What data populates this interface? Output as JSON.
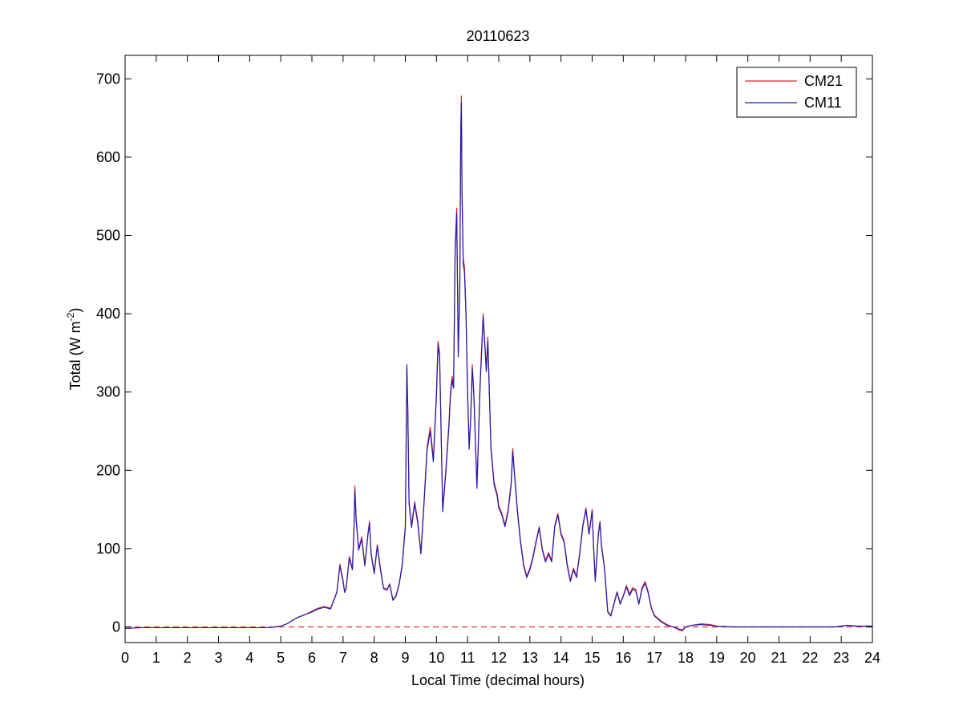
{
  "chart_data": {
    "type": "line",
    "title": "20110623",
    "xlabel": "Local Time (decimal hours)",
    "ylabel_main": "Total (W m",
    "ylabel_sup": "-2",
    "ylabel_end": ")",
    "xlim": [
      0,
      24
    ],
    "ylim": [
      -20,
      730
    ],
    "xticks": [
      0,
      1,
      2,
      3,
      4,
      5,
      6,
      7,
      8,
      9,
      10,
      11,
      12,
      13,
      14,
      15,
      16,
      17,
      18,
      19,
      20,
      21,
      22,
      23,
      24
    ],
    "yticks": [
      0,
      100,
      200,
      300,
      400,
      500,
      600,
      700
    ],
    "grid": false,
    "legend_position": "top-right",
    "zero_line": {
      "y": 0,
      "style": "dashed",
      "color": "#e0303a"
    },
    "series": [
      {
        "name": "CM21",
        "color": "#e8202a",
        "points": [
          [
            0,
            -2
          ],
          [
            0.5,
            -1
          ],
          [
            1,
            -1
          ],
          [
            2,
            -1
          ],
          [
            3,
            -1
          ],
          [
            4,
            -1
          ],
          [
            4.6,
            -1
          ],
          [
            4.8,
            0
          ],
          [
            5,
            1
          ],
          [
            5.2,
            4
          ],
          [
            5.4,
            9
          ],
          [
            5.6,
            13
          ],
          [
            5.8,
            16
          ],
          [
            6,
            20
          ],
          [
            6.2,
            24
          ],
          [
            6.4,
            26
          ],
          [
            6.6,
            24
          ],
          [
            6.8,
            45
          ],
          [
            6.9,
            80
          ],
          [
            7,
            60
          ],
          [
            7.05,
            45
          ],
          [
            7.1,
            50
          ],
          [
            7.2,
            90
          ],
          [
            7.3,
            75
          ],
          [
            7.35,
            125
          ],
          [
            7.38,
            180
          ],
          [
            7.42,
            140
          ],
          [
            7.5,
            100
          ],
          [
            7.6,
            115
          ],
          [
            7.7,
            80
          ],
          [
            7.8,
            120
          ],
          [
            7.85,
            135
          ],
          [
            7.9,
            95
          ],
          [
            8,
            70
          ],
          [
            8.1,
            105
          ],
          [
            8.2,
            75
          ],
          [
            8.3,
            50
          ],
          [
            8.4,
            48
          ],
          [
            8.5,
            55
          ],
          [
            8.6,
            35
          ],
          [
            8.7,
            40
          ],
          [
            8.8,
            55
          ],
          [
            8.9,
            80
          ],
          [
            9,
            130
          ],
          [
            9.05,
            330
          ],
          [
            9.08,
            280
          ],
          [
            9.12,
            160
          ],
          [
            9.2,
            130
          ],
          [
            9.3,
            160
          ],
          [
            9.4,
            135
          ],
          [
            9.5,
            95
          ],
          [
            9.6,
            160
          ],
          [
            9.7,
            230
          ],
          [
            9.8,
            255
          ],
          [
            9.9,
            215
          ],
          [
            10,
            300
          ],
          [
            10.05,
            365
          ],
          [
            10.1,
            350
          ],
          [
            10.2,
            150
          ],
          [
            10.3,
            200
          ],
          [
            10.4,
            260
          ],
          [
            10.45,
            300
          ],
          [
            10.5,
            320
          ],
          [
            10.55,
            310
          ],
          [
            10.6,
            485
          ],
          [
            10.65,
            535
          ],
          [
            10.7,
            350
          ],
          [
            10.75,
            440
          ],
          [
            10.78,
            635
          ],
          [
            10.8,
            678
          ],
          [
            10.82,
            560
          ],
          [
            10.86,
            470
          ],
          [
            10.9,
            460
          ],
          [
            10.95,
            400
          ],
          [
            11,
            300
          ],
          [
            11.05,
            230
          ],
          [
            11.1,
            270
          ],
          [
            11.15,
            335
          ],
          [
            11.2,
            300
          ],
          [
            11.3,
            180
          ],
          [
            11.4,
            310
          ],
          [
            11.5,
            400
          ],
          [
            11.6,
            330
          ],
          [
            11.65,
            370
          ],
          [
            11.75,
            230
          ],
          [
            11.85,
            185
          ],
          [
            11.95,
            170
          ],
          [
            12,
            155
          ],
          [
            12.1,
            145
          ],
          [
            12.2,
            130
          ],
          [
            12.3,
            150
          ],
          [
            12.4,
            185
          ],
          [
            12.45,
            228
          ],
          [
            12.5,
            200
          ],
          [
            12.6,
            150
          ],
          [
            12.7,
            110
          ],
          [
            12.8,
            80
          ],
          [
            12.9,
            65
          ],
          [
            13,
            75
          ],
          [
            13.1,
            90
          ],
          [
            13.2,
            110
          ],
          [
            13.3,
            128
          ],
          [
            13.4,
            100
          ],
          [
            13.5,
            85
          ],
          [
            13.6,
            95
          ],
          [
            13.7,
            85
          ],
          [
            13.8,
            130
          ],
          [
            13.9,
            145
          ],
          [
            14,
            120
          ],
          [
            14.1,
            110
          ],
          [
            14.2,
            80
          ],
          [
            14.3,
            60
          ],
          [
            14.4,
            75
          ],
          [
            14.5,
            65
          ],
          [
            14.6,
            95
          ],
          [
            14.7,
            130
          ],
          [
            14.8,
            152
          ],
          [
            14.9,
            120
          ],
          [
            15,
            150
          ],
          [
            15.05,
            100
          ],
          [
            15.1,
            60
          ],
          [
            15.2,
            120
          ],
          [
            15.25,
            135
          ],
          [
            15.3,
            105
          ],
          [
            15.4,
            75
          ],
          [
            15.5,
            20
          ],
          [
            15.6,
            15
          ],
          [
            15.7,
            30
          ],
          [
            15.8,
            45
          ],
          [
            15.9,
            30
          ],
          [
            16,
            40
          ],
          [
            16.1,
            53
          ],
          [
            16.2,
            42
          ],
          [
            16.3,
            50
          ],
          [
            16.4,
            48
          ],
          [
            16.5,
            30
          ],
          [
            16.6,
            50
          ],
          [
            16.7,
            58
          ],
          [
            16.8,
            45
          ],
          [
            16.9,
            25
          ],
          [
            17,
            15
          ],
          [
            17.2,
            8
          ],
          [
            17.4,
            3
          ],
          [
            17.6,
            0
          ],
          [
            17.8,
            -4
          ],
          [
            17.9,
            -5
          ],
          [
            18,
            0
          ],
          [
            18.2,
            2
          ],
          [
            18.5,
            4
          ],
          [
            18.8,
            3
          ],
          [
            19,
            1
          ],
          [
            19.5,
            0
          ],
          [
            20,
            0
          ],
          [
            21,
            0
          ],
          [
            22,
            0
          ],
          [
            22.8,
            0
          ],
          [
            23.2,
            2
          ],
          [
            23.5,
            1
          ],
          [
            24,
            1
          ]
        ]
      },
      {
        "name": "CM11",
        "color": "#1d1db0",
        "points": [
          [
            0,
            -2
          ],
          [
            0.5,
            -1
          ],
          [
            1,
            -1
          ],
          [
            2,
            -1
          ],
          [
            3,
            -1
          ],
          [
            4,
            -1
          ],
          [
            4.6,
            -1
          ],
          [
            4.8,
            0
          ],
          [
            5,
            1
          ],
          [
            5.2,
            4
          ],
          [
            5.4,
            9
          ],
          [
            5.6,
            13
          ],
          [
            5.8,
            16
          ],
          [
            6,
            19
          ],
          [
            6.2,
            23
          ],
          [
            6.4,
            25
          ],
          [
            6.6,
            23
          ],
          [
            6.8,
            44
          ],
          [
            6.9,
            78
          ],
          [
            7,
            58
          ],
          [
            7.05,
            44
          ],
          [
            7.1,
            49
          ],
          [
            7.2,
            88
          ],
          [
            7.3,
            73
          ],
          [
            7.35,
            122
          ],
          [
            7.38,
            175
          ],
          [
            7.42,
            137
          ],
          [
            7.5,
            98
          ],
          [
            7.6,
            112
          ],
          [
            7.7,
            78
          ],
          [
            7.8,
            118
          ],
          [
            7.85,
            132
          ],
          [
            7.9,
            93
          ],
          [
            8,
            68
          ],
          [
            8.1,
            103
          ],
          [
            8.2,
            73
          ],
          [
            8.3,
            49
          ],
          [
            8.4,
            47
          ],
          [
            8.5,
            54
          ],
          [
            8.6,
            34
          ],
          [
            8.7,
            39
          ],
          [
            8.8,
            54
          ],
          [
            8.9,
            78
          ],
          [
            9,
            127
          ],
          [
            9.05,
            335
          ],
          [
            9.08,
            275
          ],
          [
            9.12,
            157
          ],
          [
            9.2,
            127
          ],
          [
            9.3,
            157
          ],
          [
            9.4,
            132
          ],
          [
            9.5,
            93
          ],
          [
            9.6,
            157
          ],
          [
            9.7,
            226
          ],
          [
            9.8,
            250
          ],
          [
            9.9,
            211
          ],
          [
            10,
            295
          ],
          [
            10.05,
            360
          ],
          [
            10.1,
            345
          ],
          [
            10.2,
            147
          ],
          [
            10.3,
            197
          ],
          [
            10.4,
            255
          ],
          [
            10.45,
            295
          ],
          [
            10.5,
            315
          ],
          [
            10.55,
            305
          ],
          [
            10.6,
            478
          ],
          [
            10.65,
            528
          ],
          [
            10.7,
            345
          ],
          [
            10.75,
            433
          ],
          [
            10.78,
            630
          ],
          [
            10.8,
            670
          ],
          [
            10.82,
            553
          ],
          [
            10.86,
            463
          ],
          [
            10.9,
            453
          ],
          [
            10.95,
            395
          ],
          [
            11,
            296
          ],
          [
            11.05,
            227
          ],
          [
            11.1,
            266
          ],
          [
            11.15,
            330
          ],
          [
            11.2,
            296
          ],
          [
            11.3,
            177
          ],
          [
            11.4,
            305
          ],
          [
            11.5,
            396
          ],
          [
            11.6,
            326
          ],
          [
            11.65,
            365
          ],
          [
            11.75,
            227
          ],
          [
            11.85,
            182
          ],
          [
            11.95,
            167
          ],
          [
            12,
            152
          ],
          [
            12.1,
            143
          ],
          [
            12.2,
            128
          ],
          [
            12.3,
            147
          ],
          [
            12.4,
            182
          ],
          [
            12.45,
            224
          ],
          [
            12.5,
            197
          ],
          [
            12.6,
            147
          ],
          [
            12.7,
            108
          ],
          [
            12.8,
            78
          ],
          [
            12.9,
            63
          ],
          [
            13,
            73
          ],
          [
            13.1,
            88
          ],
          [
            13.2,
            108
          ],
          [
            13.3,
            126
          ],
          [
            13.4,
            98
          ],
          [
            13.5,
            83
          ],
          [
            13.6,
            93
          ],
          [
            13.7,
            83
          ],
          [
            13.8,
            128
          ],
          [
            13.9,
            143
          ],
          [
            14,
            118
          ],
          [
            14.1,
            108
          ],
          [
            14.2,
            78
          ],
          [
            14.3,
            58
          ],
          [
            14.4,
            73
          ],
          [
            14.5,
            63
          ],
          [
            14.6,
            93
          ],
          [
            14.7,
            128
          ],
          [
            14.8,
            150
          ],
          [
            14.9,
            118
          ],
          [
            15,
            148
          ],
          [
            15.05,
            98
          ],
          [
            15.1,
            58
          ],
          [
            15.2,
            118
          ],
          [
            15.25,
            133
          ],
          [
            15.3,
            103
          ],
          [
            15.4,
            73
          ],
          [
            15.5,
            19
          ],
          [
            15.6,
            14
          ],
          [
            15.7,
            29
          ],
          [
            15.8,
            44
          ],
          [
            15.9,
            29
          ],
          [
            16,
            39
          ],
          [
            16.1,
            51
          ],
          [
            16.2,
            40
          ],
          [
            16.3,
            48
          ],
          [
            16.4,
            46
          ],
          [
            16.5,
            29
          ],
          [
            16.6,
            48
          ],
          [
            16.7,
            56
          ],
          [
            16.8,
            43
          ],
          [
            16.9,
            24
          ],
          [
            17,
            14
          ],
          [
            17.2,
            7
          ],
          [
            17.4,
            2
          ],
          [
            17.6,
            0
          ],
          [
            17.8,
            -3
          ],
          [
            17.9,
            -4
          ],
          [
            18,
            0
          ],
          [
            18.2,
            2
          ],
          [
            18.5,
            3
          ],
          [
            18.8,
            2
          ],
          [
            19,
            1
          ],
          [
            19.5,
            0
          ],
          [
            20,
            0
          ],
          [
            21,
            0
          ],
          [
            22,
            0
          ],
          [
            22.8,
            0
          ],
          [
            23.2,
            2
          ],
          [
            23.5,
            1
          ],
          [
            24,
            1
          ]
        ]
      }
    ]
  }
}
